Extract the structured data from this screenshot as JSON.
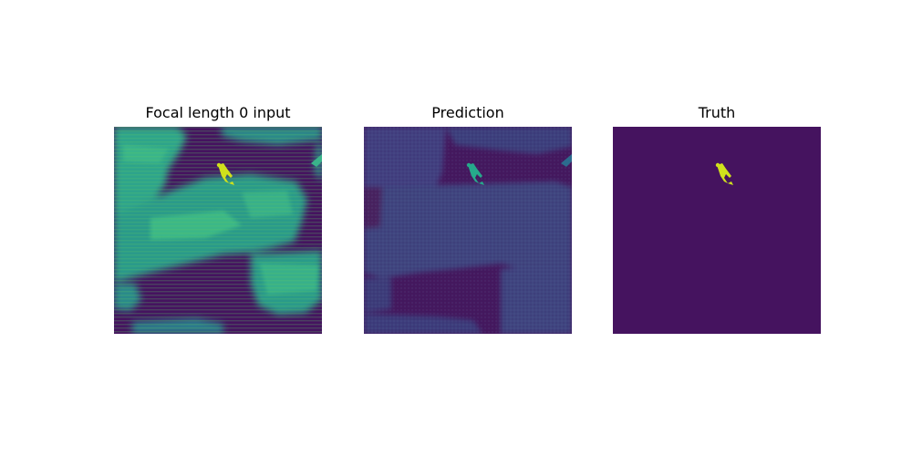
{
  "figure": {
    "panels": [
      {
        "title": "Focal length 0 input"
      },
      {
        "title": "Prediction"
      },
      {
        "title": "Truth"
      }
    ]
  },
  "colors": {
    "background": "#ffffff",
    "viridis_dark": "#45135f",
    "viridis_mid": "#2f6f8e",
    "viridis_teal": "#26a98b",
    "viridis_green": "#5cc863",
    "viridis_yellow": "#d0e11c"
  }
}
